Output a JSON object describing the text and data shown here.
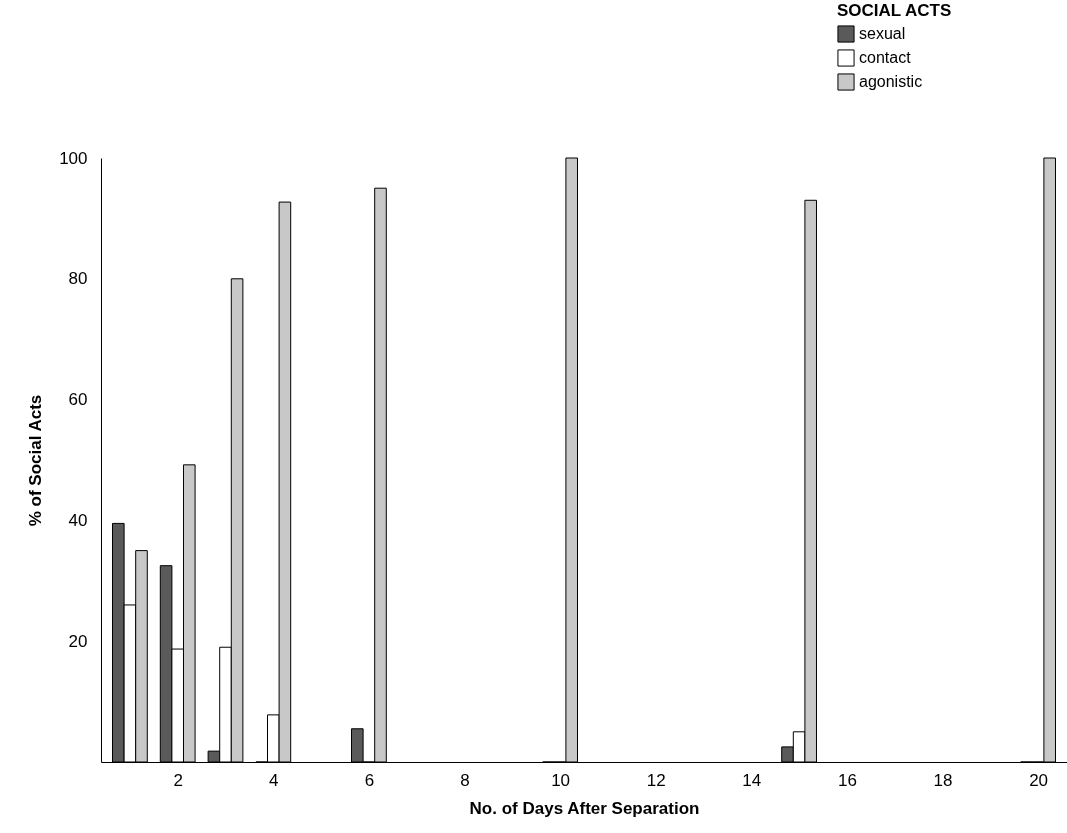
{
  "chart_data": {
    "type": "bar",
    "xlabel": "No.  of Days After Separation",
    "ylabel": "% of Social Acts",
    "legend_title": "SOCIAL ACTS",
    "x": [
      1,
      2,
      3,
      4,
      6,
      10,
      15,
      20
    ],
    "series": [
      {
        "name": "sexual",
        "color": "#5a5a5a",
        "values": [
          39.5,
          32.5,
          1.8,
          0,
          5.5,
          0,
          2.5,
          0
        ]
      },
      {
        "name": "contact",
        "color": "#ffffff",
        "values": [
          26,
          18.7,
          19,
          7.8,
          0,
          0,
          5,
          0
        ]
      },
      {
        "name": "agonistic",
        "color": "#c8c8c8",
        "values": [
          35,
          49.2,
          80,
          92.7,
          95,
          100,
          93,
          100
        ]
      }
    ],
    "xlim": [
      0.5,
      20.5
    ],
    "xticks": [
      2,
      4,
      6,
      8,
      10,
      12,
      14,
      16,
      18,
      20
    ],
    "ylim": [
      0,
      100
    ],
    "yticks": [
      20,
      40,
      60,
      80,
      100
    ],
    "grid": false,
    "legend": "top right"
  }
}
